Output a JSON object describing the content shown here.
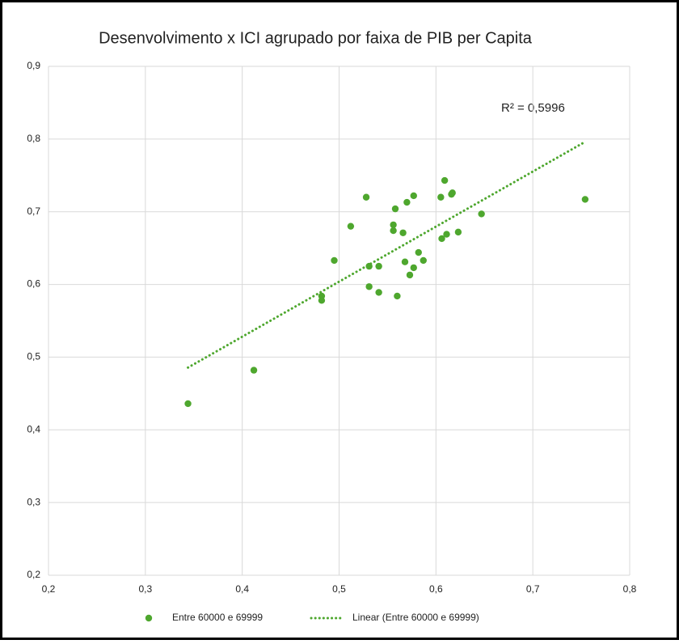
{
  "chart_data": {
    "type": "scatter",
    "title": "Desenvolvimento x ICI agrupado por faixa de PIB per Capita",
    "annotation": "R² = 0,5996",
    "series": [
      {
        "name": "Entre 60000 e 69999",
        "color": "#4ea72e",
        "x": [
          0.344,
          0.412,
          0.482,
          0.482,
          0.495,
          0.512,
          0.528,
          0.531,
          0.531,
          0.541,
          0.541,
          0.556,
          0.556,
          0.558,
          0.56,
          0.566,
          0.568,
          0.57,
          0.573,
          0.577,
          0.577,
          0.582,
          0.587,
          0.605,
          0.606,
          0.609,
          0.611,
          0.616,
          0.617,
          0.623,
          0.647,
          0.754
        ],
        "values": [
          0.436,
          0.482,
          0.584,
          0.578,
          0.633,
          0.68,
          0.72,
          0.625,
          0.597,
          0.589,
          0.625,
          0.682,
          0.674,
          0.704,
          0.584,
          0.671,
          0.631,
          0.713,
          0.613,
          0.722,
          0.623,
          0.644,
          0.633,
          0.72,
          0.663,
          0.743,
          0.669,
          0.724,
          0.726,
          0.672,
          0.697,
          0.717
        ]
      }
    ],
    "trendline": {
      "name": "Linear (Entre 60000 e 69999)",
      "type": "linear",
      "color": "#4ea72e"
    },
    "xlim": [
      0.2,
      0.8
    ],
    "ylim": [
      0.2,
      0.9
    ],
    "xticks": [
      {
        "value": 0.2,
        "label": "0,2"
      },
      {
        "value": 0.3,
        "label": "0,3"
      },
      {
        "value": 0.4,
        "label": "0,4"
      },
      {
        "value": 0.5,
        "label": "0,5"
      },
      {
        "value": 0.6,
        "label": "0,6"
      },
      {
        "value": 0.7,
        "label": "0,7"
      },
      {
        "value": 0.8,
        "label": "0,8"
      }
    ],
    "yticks": [
      {
        "value": 0.2,
        "label": "0,2"
      },
      {
        "value": 0.3,
        "label": "0,3"
      },
      {
        "value": 0.4,
        "label": "0,4"
      },
      {
        "value": 0.5,
        "label": "0,5"
      },
      {
        "value": 0.6,
        "label": "0,6"
      },
      {
        "value": 0.7,
        "label": "0,7"
      },
      {
        "value": 0.8,
        "label": "0,8"
      },
      {
        "value": 0.9,
        "label": "0,9"
      }
    ],
    "grid": true,
    "legend": "bottom"
  }
}
